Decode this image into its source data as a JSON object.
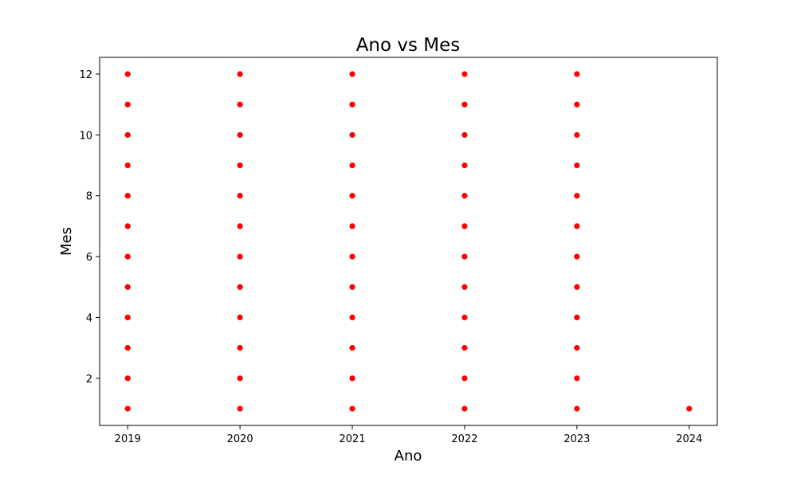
{
  "chart_data": {
    "type": "scatter",
    "title": "Ano vs Mes",
    "xlabel": "Ano",
    "ylabel": "Mes",
    "x_ticks": [
      2019,
      2020,
      2021,
      2022,
      2023,
      2024
    ],
    "y_ticks": [
      2,
      4,
      6,
      8,
      10,
      12
    ],
    "xlim": [
      2018.75,
      2024.25
    ],
    "ylim": [
      0.45,
      12.55
    ],
    "grid": false,
    "marker_color": "#ff0000",
    "points": [
      {
        "x": 2019,
        "y": 1
      },
      {
        "x": 2019,
        "y": 2
      },
      {
        "x": 2019,
        "y": 3
      },
      {
        "x": 2019,
        "y": 4
      },
      {
        "x": 2019,
        "y": 5
      },
      {
        "x": 2019,
        "y": 6
      },
      {
        "x": 2019,
        "y": 7
      },
      {
        "x": 2019,
        "y": 8
      },
      {
        "x": 2019,
        "y": 9
      },
      {
        "x": 2019,
        "y": 10
      },
      {
        "x": 2019,
        "y": 11
      },
      {
        "x": 2019,
        "y": 12
      },
      {
        "x": 2020,
        "y": 1
      },
      {
        "x": 2020,
        "y": 2
      },
      {
        "x": 2020,
        "y": 3
      },
      {
        "x": 2020,
        "y": 4
      },
      {
        "x": 2020,
        "y": 5
      },
      {
        "x": 2020,
        "y": 6
      },
      {
        "x": 2020,
        "y": 7
      },
      {
        "x": 2020,
        "y": 8
      },
      {
        "x": 2020,
        "y": 9
      },
      {
        "x": 2020,
        "y": 10
      },
      {
        "x": 2020,
        "y": 11
      },
      {
        "x": 2020,
        "y": 12
      },
      {
        "x": 2021,
        "y": 1
      },
      {
        "x": 2021,
        "y": 2
      },
      {
        "x": 2021,
        "y": 3
      },
      {
        "x": 2021,
        "y": 4
      },
      {
        "x": 2021,
        "y": 5
      },
      {
        "x": 2021,
        "y": 6
      },
      {
        "x": 2021,
        "y": 7
      },
      {
        "x": 2021,
        "y": 8
      },
      {
        "x": 2021,
        "y": 9
      },
      {
        "x": 2021,
        "y": 10
      },
      {
        "x": 2021,
        "y": 11
      },
      {
        "x": 2021,
        "y": 12
      },
      {
        "x": 2022,
        "y": 1
      },
      {
        "x": 2022,
        "y": 2
      },
      {
        "x": 2022,
        "y": 3
      },
      {
        "x": 2022,
        "y": 4
      },
      {
        "x": 2022,
        "y": 5
      },
      {
        "x": 2022,
        "y": 6
      },
      {
        "x": 2022,
        "y": 7
      },
      {
        "x": 2022,
        "y": 8
      },
      {
        "x": 2022,
        "y": 9
      },
      {
        "x": 2022,
        "y": 10
      },
      {
        "x": 2022,
        "y": 11
      },
      {
        "x": 2022,
        "y": 12
      },
      {
        "x": 2023,
        "y": 1
      },
      {
        "x": 2023,
        "y": 2
      },
      {
        "x": 2023,
        "y": 3
      },
      {
        "x": 2023,
        "y": 4
      },
      {
        "x": 2023,
        "y": 5
      },
      {
        "x": 2023,
        "y": 6
      },
      {
        "x": 2023,
        "y": 7
      },
      {
        "x": 2023,
        "y": 8
      },
      {
        "x": 2023,
        "y": 9
      },
      {
        "x": 2023,
        "y": 10
      },
      {
        "x": 2023,
        "y": 11
      },
      {
        "x": 2023,
        "y": 12
      },
      {
        "x": 2024,
        "y": 1
      }
    ]
  }
}
